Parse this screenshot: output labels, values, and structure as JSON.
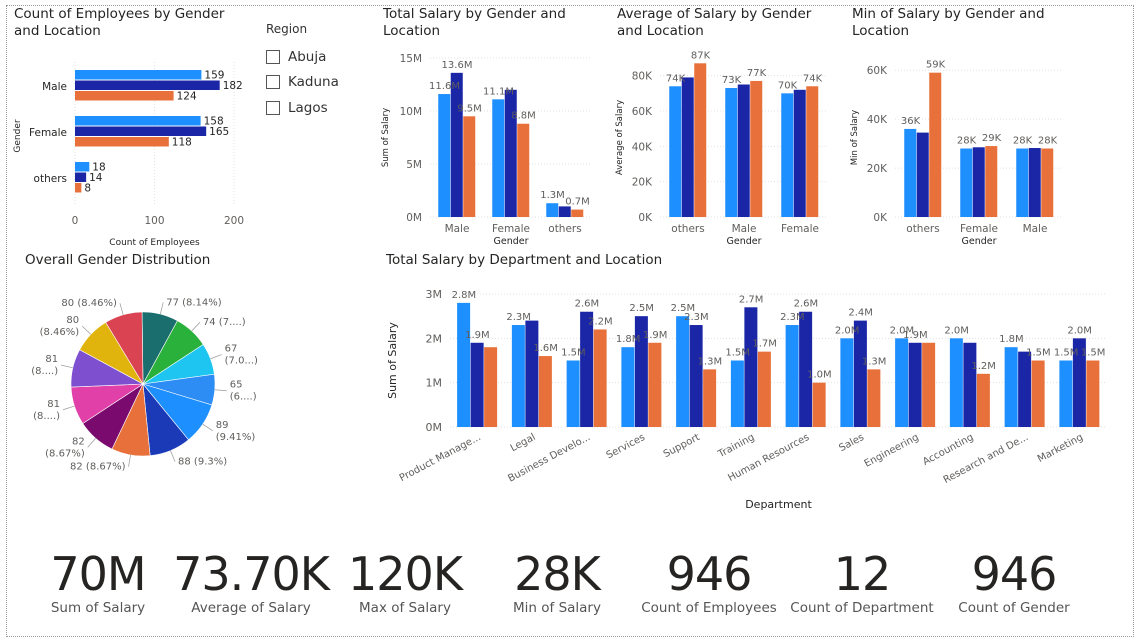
{
  "colors": {
    "abuja": "#1E8FFF",
    "kaduna": "#1A26A6",
    "lagos": "#E8703A",
    "text": "#252423",
    "axis": "#605E5C",
    "grid": "#E1E1E1"
  },
  "titles": {
    "count_by_gender": "Count of Employees by Gender\nand Location",
    "total_by_gender": "Total Salary by Gender and\nLocation",
    "avg_by_gender": "Average of Salary by Gender\nand Location",
    "min_by_gender": "Min of Salary by Gender and\nLocation",
    "pie": "Overall Gender Distribution",
    "dept": "Total Salary by Department and Location"
  },
  "slicer": {
    "title": "Region",
    "items": [
      "Abuja",
      "Kaduna",
      "Lagos"
    ]
  },
  "kpis": [
    {
      "value": "70M",
      "label": "Sum of Salary"
    },
    {
      "value": "73.70K",
      "label": "Average of Salary"
    },
    {
      "value": "120K",
      "label": "Max of Salary"
    },
    {
      "value": "28K",
      "label": "Min of Salary"
    },
    {
      "value": "946",
      "label": "Count of Employees"
    },
    {
      "value": "12",
      "label": "Count of Department"
    },
    {
      "value": "946",
      "label": "Count of Gender"
    }
  ],
  "chart_data": [
    {
      "id": "count_by_gender",
      "type": "bar",
      "orientation": "horizontal",
      "categories": [
        "Male",
        "Female",
        "others"
      ],
      "series": [
        {
          "values": [
            159,
            158,
            18
          ]
        },
        {
          "values": [
            182,
            165,
            14
          ]
        },
        {
          "values": [
            124,
            118,
            8
          ]
        }
      ],
      "xlabel": "Count of Employees",
      "ylabel": "Gender",
      "xlim": [
        0,
        200
      ],
      "xticks": [
        "0",
        "100",
        "200"
      ],
      "data_labels": [
        [
          "159",
          "182",
          "124"
        ],
        [
          "158",
          "165",
          "118"
        ],
        [
          "18",
          "14",
          "8"
        ]
      ]
    },
    {
      "id": "total_by_gender",
      "type": "bar",
      "categories": [
        "Male",
        "Female",
        "others"
      ],
      "series": [
        {
          "values": [
            11.6,
            11.1,
            1.3
          ]
        },
        {
          "values": [
            13.6,
            12.0,
            1.0
          ]
        },
        {
          "values": [
            9.5,
            8.8,
            0.7
          ]
        }
      ],
      "xlabel": "Gender",
      "ylabel": "Sum of Salary",
      "ylim": [
        0,
        15
      ],
      "yticks": [
        {
          "v": 0,
          "t": "0M"
        },
        {
          "v": 5,
          "t": "5M"
        },
        {
          "v": 10,
          "t": "10M"
        },
        {
          "v": 15,
          "t": "15M"
        }
      ],
      "data_labels": [
        [
          "11.6M",
          "11.1M",
          "1.3M"
        ],
        [
          "13.6M",
          "",
          ""
        ],
        [
          "9.5M",
          "8.8M",
          "0.7M"
        ]
      ]
    },
    {
      "id": "avg_by_gender",
      "type": "bar",
      "categories": [
        "others",
        "Male",
        "Female"
      ],
      "series": [
        {
          "values": [
            74,
            73,
            70
          ]
        },
        {
          "values": [
            79,
            75,
            72
          ]
        },
        {
          "values": [
            87,
            77,
            74
          ]
        }
      ],
      "xlabel": "Gender",
      "ylabel": "Average of Salary",
      "ylim": [
        0,
        90
      ],
      "yticks": [
        {
          "v": 0,
          "t": "0K"
        },
        {
          "v": 20,
          "t": "20K"
        },
        {
          "v": 40,
          "t": "40K"
        },
        {
          "v": 60,
          "t": "60K"
        },
        {
          "v": 80,
          "t": "80K"
        }
      ],
      "data_labels": [
        [
          "74K",
          "73K",
          "70K"
        ],
        [
          "",
          "",
          ""
        ],
        [
          "87K",
          "77K",
          "74K"
        ]
      ]
    },
    {
      "id": "min_by_gender",
      "type": "bar",
      "categories": [
        "others",
        "Female",
        "Male"
      ],
      "series": [
        {
          "values": [
            36,
            28,
            28
          ]
        },
        {
          "values": [
            34.5,
            28.5,
            28.2
          ]
        },
        {
          "values": [
            59,
            29,
            28
          ]
        }
      ],
      "xlabel": "Gender",
      "ylabel": "Min of Salary",
      "ylim": [
        0,
        65
      ],
      "yticks": [
        {
          "v": 0,
          "t": "0K"
        },
        {
          "v": 20,
          "t": "20K"
        },
        {
          "v": 40,
          "t": "40K"
        },
        {
          "v": 60,
          "t": "60K"
        }
      ],
      "data_labels": [
        [
          "36K",
          "28K",
          "28K"
        ],
        [
          "",
          "",
          ""
        ],
        [
          "59K",
          "29K",
          "28K"
        ]
      ]
    },
    {
      "id": "pie",
      "type": "pie",
      "values": [
        77,
        74,
        67,
        65,
        89,
        88,
        82,
        82,
        81,
        81,
        80,
        80
      ],
      "labels": [
        "77 (8.14%)",
        "74 (7....)",
        "67\n(7.0...)",
        "65\n(6....)",
        "89\n(9.41%)",
        "88 (9.3%)",
        "82 (8.67%)",
        "82\n(8.67%)",
        "81\n(8....)",
        "81\n(8....)",
        "80\n(8.46%)",
        "80 (8.46%)"
      ],
      "colors": [
        "#1B6E6E",
        "#2AB13C",
        "#1EC5F0",
        "#2E8DF5",
        "#1E8FFF",
        "#1A3AB8",
        "#E8703A",
        "#7A0A6E",
        "#E040A8",
        "#7E4FCF",
        "#E0B40C",
        "#DA4452"
      ]
    },
    {
      "id": "dept",
      "type": "bar",
      "categories": [
        "Product Manage...",
        "Legal",
        "Business Develo...",
        "Services",
        "Support",
        "Training",
        "Human Resources",
        "Sales",
        "Engineering",
        "Accounting",
        "Research and De...",
        "Marketing"
      ],
      "series": [
        {
          "values": [
            2.8,
            2.3,
            1.5,
            1.8,
            2.5,
            1.5,
            2.3,
            2.0,
            2.0,
            2.0,
            1.8,
            1.5
          ]
        },
        {
          "values": [
            1.9,
            2.4,
            2.6,
            2.5,
            2.3,
            2.7,
            2.6,
            2.4,
            1.9,
            1.9,
            1.7,
            2.0
          ]
        },
        {
          "values": [
            1.8,
            1.6,
            2.2,
            1.9,
            1.3,
            1.7,
            1.0,
            1.3,
            1.9,
            1.2,
            1.5,
            1.5
          ]
        }
      ],
      "xlabel": "Department",
      "ylabel": "Sum of Salary",
      "ylim": [
        0,
        3
      ],
      "yticks": [
        {
          "v": 0,
          "t": "0M"
        },
        {
          "v": 1,
          "t": "1M"
        },
        {
          "v": 2,
          "t": "2M"
        },
        {
          "v": 3,
          "t": "3M"
        }
      ],
      "data_labels": [
        [
          "2.8M",
          "2.3M",
          "1.5M",
          "1.8M",
          "2.5M",
          "1.5M",
          "2.3M",
          "2.0M",
          "2.0M",
          "2.0M",
          "1.8M",
          "1.5M"
        ],
        [
          "1.9M",
          "",
          "2.6M",
          "2.5M",
          "2.3M",
          "2.7M",
          "2.6M",
          "2.4M",
          "1.9M",
          "",
          "",
          "2.0M"
        ],
        [
          "",
          "1.6M",
          "2.2M",
          "1.9M",
          "1.3M",
          "1.7M",
          "1.0M",
          "1.3M",
          "",
          "1.2M",
          "1.5M",
          "1.5M"
        ]
      ]
    }
  ]
}
